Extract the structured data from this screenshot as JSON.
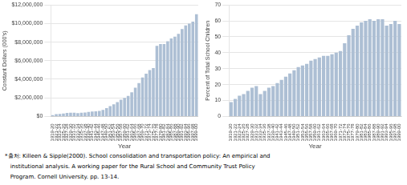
{
  "chart_data": [
    {
      "type": "bar",
      "categories": [
        "1919-20",
        "1921-22",
        "1923-24",
        "1925-26",
        "1927-28",
        "1929-30",
        "1931-32",
        "1933-34",
        "1935-36",
        "1937-38",
        "1939-40",
        "1941-42",
        "1943-44",
        "1945-46",
        "1947-48",
        "1949-50",
        "1951-52",
        "1953-54",
        "1955-56",
        "1957-58",
        "1959-60",
        "1961-62",
        "1963-64",
        "1965-66",
        "1967-68",
        "1969-70",
        "1971-72",
        "1973-74",
        "1975-76",
        "1977-78",
        "1979-80",
        "1981-82",
        "1983-84",
        "1985-86",
        "1987-88",
        "1989-90",
        "1991-92",
        "1993-94",
        "1995-96",
        "1997-98",
        "1999-00"
      ],
      "values": [
        150000,
        250000,
        280000,
        320000,
        380000,
        400000,
        390000,
        360000,
        400000,
        430000,
        480000,
        520000,
        550000,
        600000,
        700000,
        900000,
        1100000,
        1300000,
        1550000,
        1800000,
        2000000,
        2200000,
        2600000,
        3100000,
        3600000,
        4200000,
        4600000,
        5000000,
        5200000,
        7600000,
        7800000,
        7800000,
        8100000,
        8400000,
        8600000,
        8900000,
        9400000,
        9800000,
        10000000,
        10200000,
        11000000
      ],
      "color": "#adbfd4",
      "xlabel": "Year",
      "ylabel": "Constant Dollars (000's)",
      "ylim": [
        0,
        12000000
      ],
      "yticks": [
        {
          "value": 0,
          "label": "$0"
        },
        {
          "value": 2000000,
          "label": "$2,000,000"
        },
        {
          "value": 4000000,
          "label": "$4,000,000"
        },
        {
          "value": 6000000,
          "label": "$6,000,000"
        },
        {
          "value": 8000000,
          "label": "$8,000,000"
        },
        {
          "value": 10000000,
          "label": "$10,000,000"
        },
        {
          "value": 12000000,
          "label": "$12,000,000"
        }
      ],
      "grid": true
    },
    {
      "type": "bar",
      "categories": [
        "1919-20",
        "1921-22",
        "1923-24",
        "1925-26",
        "1927-28",
        "1929-30",
        "1931-32",
        "1933-34",
        "1935-36",
        "1937-38",
        "1939-40",
        "1941-42",
        "1943-44",
        "1945-46",
        "1947-48",
        "1949-50",
        "1951-52",
        "1953-54",
        "1955-56",
        "1957-58",
        "1959-60",
        "1961-62",
        "1963-64",
        "1965-66",
        "1967-68",
        "1969-70",
        "1971-72",
        "1973-74",
        "1975-76",
        "1977-78",
        "1979-80",
        "1981-82",
        "1983-84",
        "1985-86",
        "1987-88",
        "1989-90",
        "1991-92",
        "1993-94",
        "1995-96",
        "1997-98",
        "1999-00"
      ],
      "values": [
        9,
        11,
        13,
        14,
        16,
        18,
        19,
        14,
        16,
        18,
        19,
        21,
        23,
        25,
        27,
        29,
        31,
        32,
        33,
        35,
        36,
        37,
        38,
        38,
        39,
        40,
        41,
        46,
        51,
        55,
        57,
        59,
        60,
        61,
        60,
        61,
        61,
        57,
        58,
        60,
        58
      ],
      "color": "#adbfd4",
      "xlabel": "Year",
      "ylabel": "Percent of Total School Children",
      "ylim": [
        0,
        70
      ],
      "yticks": [
        0,
        10,
        20,
        30,
        40,
        50,
        60,
        70
      ],
      "grid": true
    }
  ],
  "annotations": [
    "*출처: Killeen & Sipple(2000). School consolidation and transportation policy: An empirical and",
    "   institutional analysis. A working paper for the Rural School and Community Trust Policy",
    "   Program. Cornell University. pp. 13-14."
  ]
}
